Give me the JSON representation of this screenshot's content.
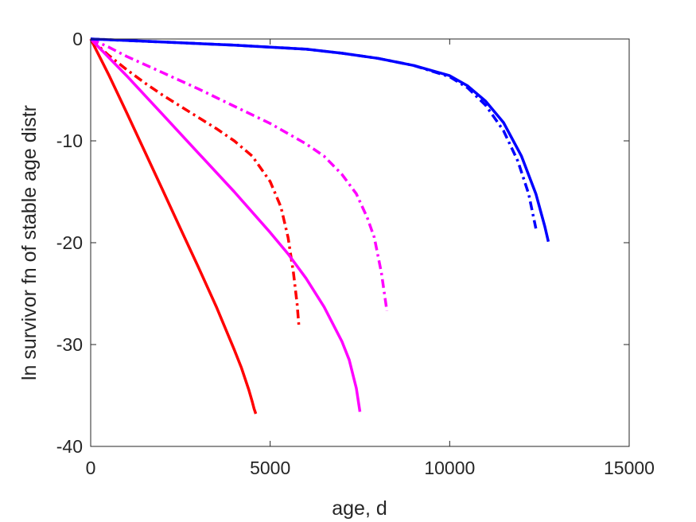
{
  "chart_data": {
    "type": "line",
    "xlabel": "age, d",
    "ylabel": "ln survivor fn of stable age distr",
    "xlim": [
      0,
      15000
    ],
    "ylim": [
      -40,
      0
    ],
    "xticks": [
      0,
      5000,
      10000,
      15000
    ],
    "yticks": [
      0,
      -10,
      -20,
      -30,
      -40
    ],
    "xtick_labels": [
      "0",
      "5000",
      "10000",
      "15000"
    ],
    "ytick_labels": [
      "0",
      "-10",
      "-20",
      "-30",
      "-40"
    ],
    "grid": false,
    "box": true,
    "series": [
      {
        "color": "#ff0000",
        "style": "solid",
        "x": [
          0,
          500,
          1000,
          1500,
          2000,
          2500,
          3000,
          3500,
          4000,
          4200,
          4400,
          4500,
          4550,
          4600
        ],
        "y": [
          0,
          -3.5,
          -7.2,
          -11.0,
          -14.8,
          -18.6,
          -22.4,
          -26.3,
          -30.5,
          -32.3,
          -34.4,
          -35.6,
          -36.3,
          -36.8
        ]
      },
      {
        "color": "#ff0000",
        "style": "dashdot",
        "x": [
          0,
          500,
          1000,
          1500,
          2000,
          2500,
          3000,
          3500,
          4000,
          4500,
          5000,
          5300,
          5500,
          5650,
          5750,
          5800
        ],
        "y": [
          0,
          -1.6,
          -3.0,
          -4.3,
          -5.5,
          -6.6,
          -7.7,
          -8.8,
          -10.0,
          -11.5,
          -14.0,
          -16.5,
          -19.5,
          -23.0,
          -26.0,
          -28.2
        ]
      },
      {
        "color": "#ff00ff",
        "style": "solid",
        "x": [
          0,
          1000,
          2000,
          3000,
          4000,
          5000,
          5500,
          6000,
          6500,
          7000,
          7200,
          7400,
          7500
        ],
        "y": [
          0,
          -3.6,
          -7.4,
          -11.2,
          -15.0,
          -19.0,
          -21.1,
          -23.5,
          -26.3,
          -29.7,
          -31.5,
          -34.3,
          -36.6
        ]
      },
      {
        "color": "#ff00ff",
        "style": "dashdot",
        "x": [
          0,
          500,
          1000,
          2000,
          3000,
          4000,
          5000,
          6000,
          6500,
          7000,
          7400,
          7700,
          7900,
          8100,
          8250
        ],
        "y": [
          0,
          -0.8,
          -1.7,
          -3.3,
          -4.9,
          -6.6,
          -8.3,
          -10.3,
          -11.5,
          -13.3,
          -15.2,
          -17.5,
          -19.5,
          -23.0,
          -26.7
        ]
      },
      {
        "color": "#0000ff",
        "style": "dashdot",
        "x": [
          0,
          2000,
          4000,
          6000,
          7000,
          8000,
          9000,
          10000,
          10500,
          11000,
          11500,
          11900,
          12200,
          12400
        ],
        "y": [
          0,
          -0.3,
          -0.6,
          -1.0,
          -1.4,
          -1.9,
          -2.6,
          -3.7,
          -4.8,
          -6.5,
          -9.0,
          -12.0,
          -15.2,
          -18.6
        ]
      },
      {
        "color": "#0000ff",
        "style": "solid",
        "x": [
          0,
          2000,
          4000,
          6000,
          7000,
          8000,
          9000,
          10000,
          10500,
          11000,
          11500,
          12000,
          12400,
          12650,
          12750
        ],
        "y": [
          0,
          -0.3,
          -0.6,
          -1.0,
          -1.4,
          -1.9,
          -2.6,
          -3.6,
          -4.6,
          -6.1,
          -8.2,
          -11.5,
          -15.2,
          -18.4,
          -19.9
        ]
      }
    ]
  }
}
